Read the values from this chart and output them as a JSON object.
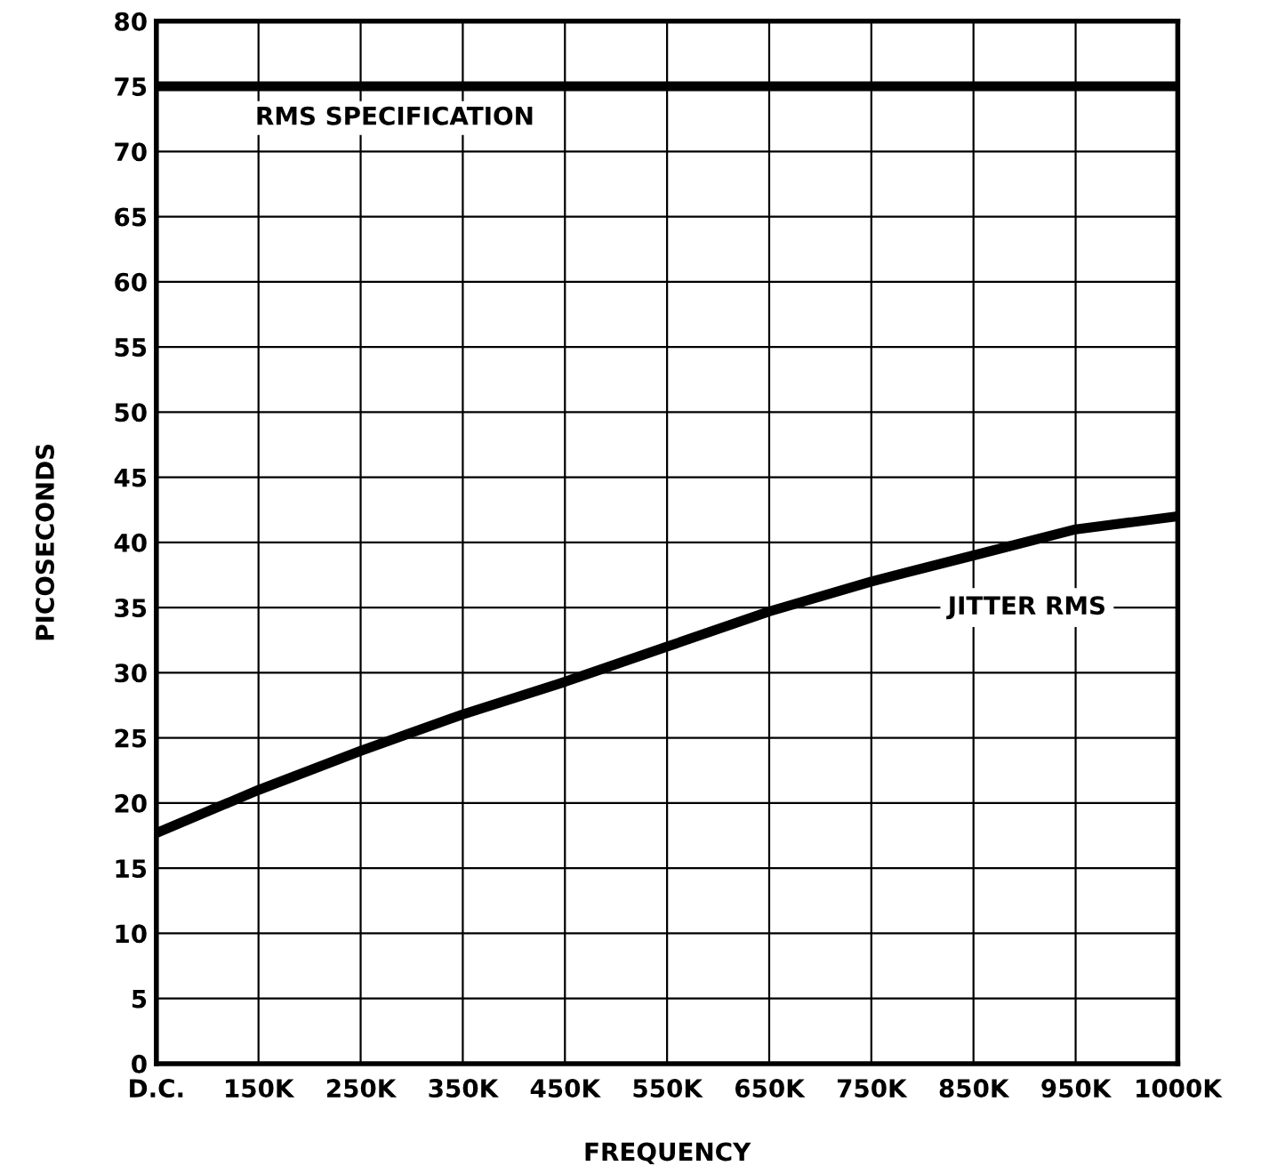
{
  "chart_data": {
    "type": "line",
    "categories": [
      "D.C.",
      "150K",
      "250K",
      "350K",
      "450K",
      "550K",
      "650K",
      "750K",
      "850K",
      "950K",
      "1000K"
    ],
    "series": [
      {
        "color": "#000000",
        "values": [
          17.7,
          21,
          24,
          26.8,
          29.3,
          32,
          34.7,
          37,
          39,
          41,
          42
        ]
      }
    ],
    "xlabel": "FREQUENCY",
    "ylabel": "PICOSECONDS",
    "ylim": [
      0,
      80
    ],
    "yticks": [
      0,
      5,
      10,
      15,
      20,
      25,
      30,
      35,
      40,
      45,
      50,
      55,
      60,
      65,
      70,
      75,
      80
    ],
    "ref_lines": [
      {
        "axis": "y",
        "value": 75,
        "label": "RMS SPECIFICATION",
        "color": "#000000"
      }
    ],
    "annotations": [
      "JITTER RMS"
    ],
    "grid": true,
    "marker": "none",
    "line_style": "solid",
    "legend": false
  }
}
